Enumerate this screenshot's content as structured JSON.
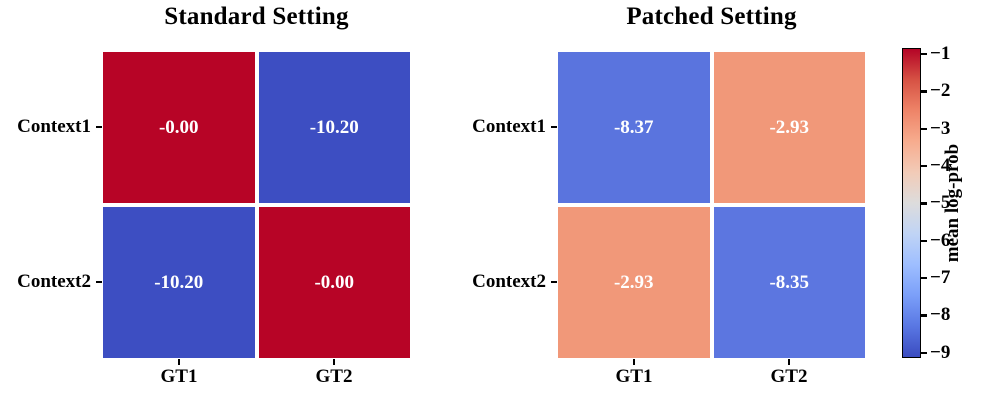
{
  "chart_data": [
    {
      "type": "heatmap",
      "title": "Standard Setting",
      "rows": [
        "Context1",
        "Context2"
      ],
      "columns": [
        "GT1",
        "GT2"
      ],
      "values": [
        [
          -0.0,
          -10.2
        ],
        [
          -10.2,
          -0.0
        ]
      ],
      "annotations": [
        [
          "-0.00",
          "-10.20"
        ],
        [
          "-10.20",
          "-0.00"
        ]
      ],
      "cell_colors": [
        [
          "#b70426",
          "#3d4ec2"
        ],
        [
          "#3d4ec2",
          "#b70426"
        ]
      ],
      "annotation_color": "#ffffff"
    },
    {
      "type": "heatmap",
      "title": "Patched Setting",
      "rows": [
        "Context1",
        "Context2"
      ],
      "columns": [
        "GT1",
        "GT2"
      ],
      "values": [
        [
          -8.37,
          -2.93
        ],
        [
          -2.93,
          -8.35
        ]
      ],
      "annotations": [
        [
          "-8.37",
          "-2.93"
        ],
        [
          "-2.93",
          "-8.35"
        ]
      ],
      "cell_colors": [
        [
          "#5a74de",
          "#f19879"
        ],
        [
          "#f19879",
          "#5c76e0"
        ]
      ],
      "annotation_color": "#ffffff"
    }
  ],
  "colorbar": {
    "label": "mean log-prob",
    "colormap": "coolwarm",
    "tick_labels": [
      "−1",
      "−2",
      "−3",
      "−4",
      "−5",
      "−6",
      "−7",
      "−8",
      "−9"
    ],
    "tick_values": [
      -1,
      -2,
      -3,
      -4,
      -5,
      -6,
      -7,
      -8,
      -9
    ],
    "orientation": "vertical",
    "gradient_top_to_bottom": [
      "#b40426",
      "#d65244",
      "#ee8468",
      "#f7ac8e",
      "#f2cbb7",
      "#dddcdc",
      "#c0d4f5",
      "#9ebeff",
      "#7b9ff9",
      "#5977e3",
      "#3b4cc0"
    ]
  }
}
